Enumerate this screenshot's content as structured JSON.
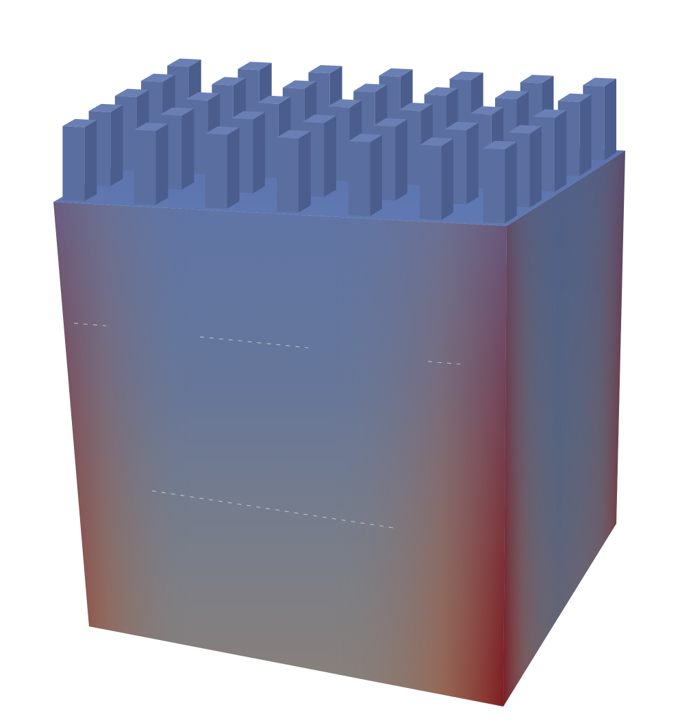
{
  "scene": {
    "object": "heat-sink-block",
    "fins": {
      "rows": 5,
      "columns": 7
    },
    "colors": {
      "background": "#ffffff",
      "cool": "#5c73a6",
      "cool_top": "#6078b0",
      "mid": "#8a8a8a",
      "warm": "#a0553a",
      "hot": "#7c0f16",
      "fin_front": "#5a6fa0",
      "fin_side": "#4a5d8c",
      "fin_top": "#6a80b5"
    }
  }
}
